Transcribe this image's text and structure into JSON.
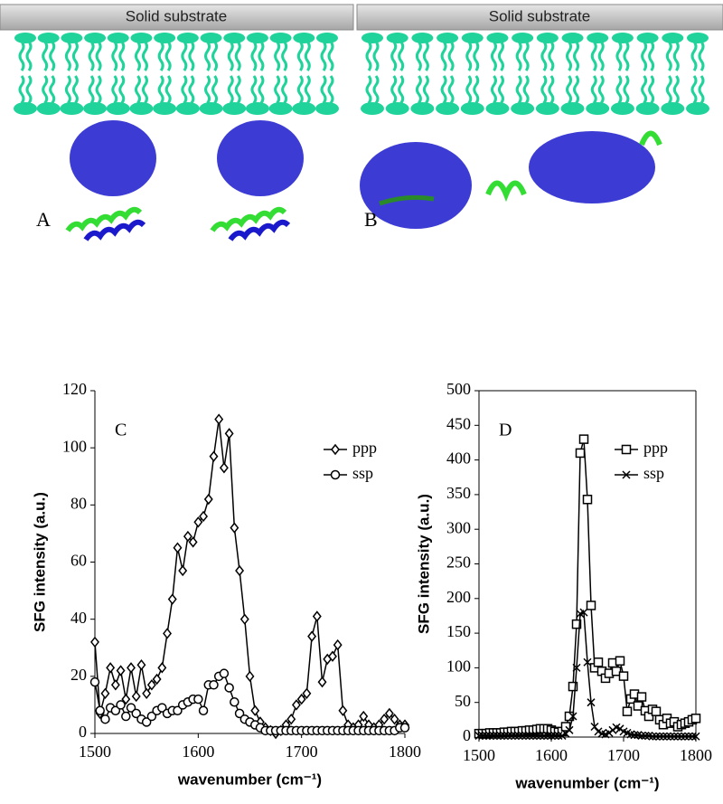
{
  "diagrams": [
    {
      "substrate": "Solid substrate",
      "panel": "A"
    },
    {
      "substrate": "Solid substrate",
      "panel": "B"
    }
  ],
  "chart_data": [
    {
      "type": "line",
      "annotation": "C",
      "x_label": "wavenumber (cm⁻¹)",
      "y_label": "SFG intensity (a.u.)",
      "x": [
        1500,
        1505,
        1510,
        1515,
        1520,
        1525,
        1530,
        1535,
        1540,
        1545,
        1550,
        1555,
        1560,
        1565,
        1570,
        1575,
        1580,
        1585,
        1590,
        1595,
        1600,
        1605,
        1610,
        1615,
        1620,
        1625,
        1630,
        1635,
        1640,
        1645,
        1650,
        1655,
        1660,
        1665,
        1670,
        1675,
        1680,
        1685,
        1690,
        1695,
        1700,
        1705,
        1710,
        1715,
        1720,
        1725,
        1730,
        1735,
        1740,
        1745,
        1750,
        1755,
        1760,
        1765,
        1770,
        1775,
        1780,
        1785,
        1790,
        1795,
        1800
      ],
      "series": [
        {
          "name": "ppp",
          "color": "#000000",
          "marker": "diamond",
          "values": [
            32,
            7,
            14,
            23,
            17,
            22,
            12,
            23,
            13,
            24,
            14,
            17,
            19,
            23,
            35,
            47,
            65,
            57,
            69,
            67,
            74,
            76,
            82,
            97,
            110,
            93,
            105,
            72,
            57,
            40,
            20,
            8,
            4,
            2,
            1,
            0,
            1,
            3,
            5,
            10,
            12,
            14,
            34,
            41,
            18,
            26,
            27,
            31,
            8,
            3,
            2,
            3,
            6,
            3,
            2,
            3,
            5,
            7,
            5,
            3,
            3
          ]
        },
        {
          "name": "ssp",
          "color": "#000000",
          "marker": "circle",
          "values": [
            18,
            8,
            5,
            9,
            8,
            10,
            6,
            9,
            7,
            5,
            4,
            6,
            8,
            9,
            7,
            8,
            8,
            10,
            11,
            12,
            12,
            8,
            17,
            17,
            20,
            21,
            16,
            11,
            7,
            5,
            4,
            3,
            2,
            1,
            1,
            1,
            1,
            1,
            1,
            1,
            1,
            1,
            1,
            1,
            1,
            1,
            1,
            1,
            1,
            1,
            1,
            1,
            1,
            1,
            1,
            1,
            1,
            1,
            1,
            2,
            2
          ]
        }
      ],
      "xlim": [
        1500,
        1800
      ],
      "xticks": [
        1500,
        1600,
        1700,
        1800
      ],
      "ylim": [
        0,
        120
      ],
      "yticks": [
        0,
        20,
        40,
        60,
        80,
        100,
        120
      ],
      "legend": "upper right",
      "frame": false
    },
    {
      "type": "line",
      "annotation": "D",
      "x_label": "wavenumber (cm⁻¹)",
      "y_label": "SFG intensity (a.u.)",
      "x": [
        1500,
        1505,
        1510,
        1515,
        1520,
        1525,
        1530,
        1535,
        1540,
        1545,
        1550,
        1555,
        1560,
        1565,
        1570,
        1575,
        1580,
        1585,
        1590,
        1595,
        1600,
        1605,
        1610,
        1615,
        1620,
        1625,
        1630,
        1635,
        1640,
        1645,
        1650,
        1655,
        1660,
        1665,
        1670,
        1675,
        1680,
        1685,
        1690,
        1695,
        1700,
        1705,
        1710,
        1715,
        1720,
        1725,
        1730,
        1735,
        1740,
        1745,
        1750,
        1755,
        1760,
        1765,
        1770,
        1775,
        1780,
        1785,
        1790,
        1795,
        1800
      ],
      "series": [
        {
          "name": "ppp",
          "color": "#000000",
          "marker": "square",
          "values": [
            5,
            5,
            5,
            6,
            6,
            6,
            6,
            7,
            7,
            8,
            8,
            8,
            9,
            9,
            10,
            10,
            11,
            12,
            12,
            12,
            10,
            8,
            7,
            8,
            15,
            30,
            73,
            163,
            410,
            430,
            343,
            190,
            100,
            108,
            95,
            85,
            92,
            107,
            95,
            110,
            88,
            37,
            55,
            62,
            45,
            58,
            38,
            30,
            40,
            37,
            25,
            18,
            27,
            20,
            22,
            15,
            18,
            20,
            22,
            25,
            27
          ]
        },
        {
          "name": "ssp",
          "color": "#000000",
          "marker": "cross",
          "values": [
            2,
            2,
            2,
            2,
            2,
            2,
            2,
            2,
            2,
            2,
            2,
            2,
            2,
            2,
            2,
            2,
            2,
            2,
            2,
            2,
            2,
            2,
            2,
            2,
            5,
            10,
            30,
            100,
            178,
            180,
            108,
            50,
            15,
            8,
            5,
            4,
            6,
            10,
            14,
            12,
            8,
            6,
            4,
            3,
            3,
            2,
            2,
            2,
            1,
            1,
            1,
            1,
            1,
            1,
            1,
            1,
            1,
            1,
            1,
            1,
            1
          ]
        }
      ],
      "xlim": [
        1500,
        1800
      ],
      "xticks": [
        1500,
        1600,
        1700,
        1800
      ],
      "ylim": [
        0,
        500
      ],
      "yticks": [
        0,
        50,
        100,
        150,
        200,
        250,
        300,
        350,
        400,
        450,
        500
      ],
      "legend": "upper right",
      "frame": true
    }
  ]
}
